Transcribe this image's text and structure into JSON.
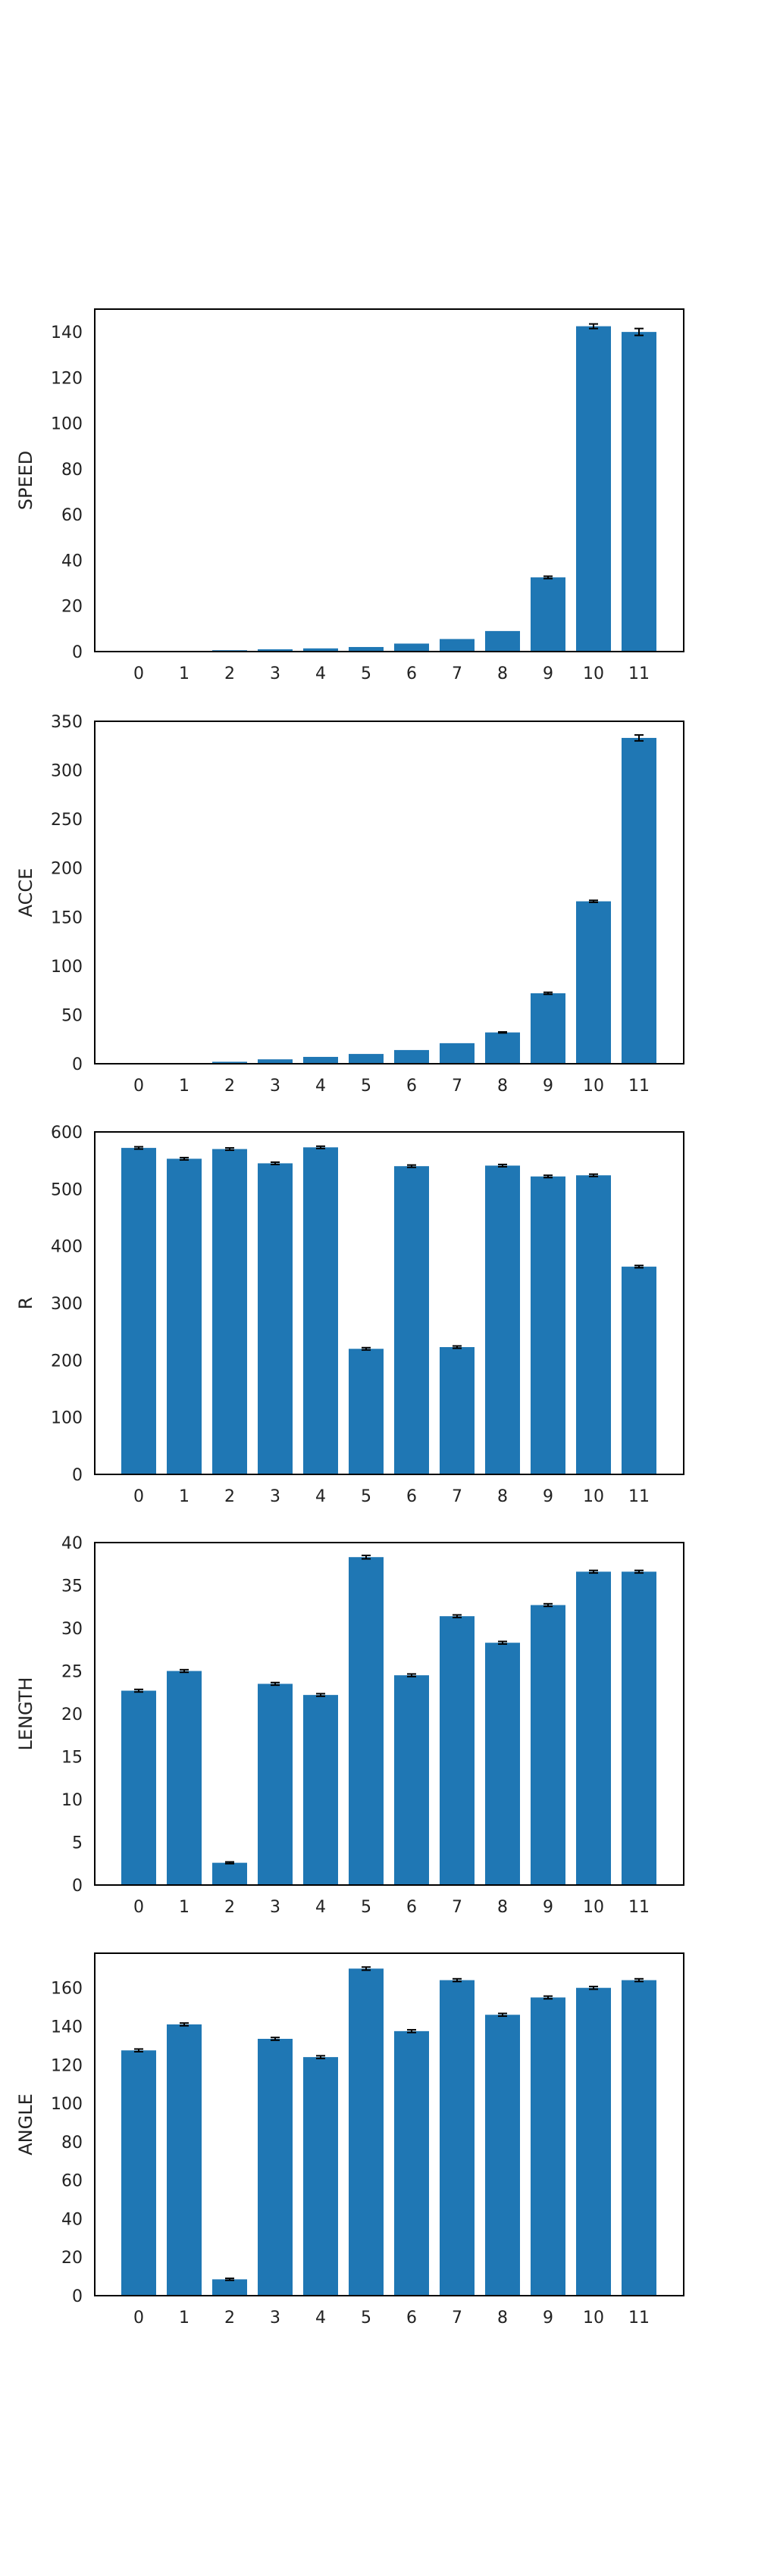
{
  "chart_data": [
    {
      "type": "bar",
      "ylabel": "SPEED",
      "categories": [
        "0",
        "1",
        "2",
        "3",
        "4",
        "5",
        "6",
        "7",
        "8",
        "9",
        "10",
        "11"
      ],
      "values": [
        0.2,
        0.3,
        0.6,
        1.0,
        1.4,
        2.0,
        3.5,
        5.5,
        9.0,
        32.5,
        142.5,
        140.0
      ],
      "errors": [
        0,
        0,
        0,
        0,
        0,
        0,
        0,
        0,
        0,
        0.5,
        1.0,
        1.5
      ],
      "ylim": [
        0,
        150
      ],
      "yticks": [
        0,
        20,
        40,
        60,
        80,
        100,
        120,
        140
      ]
    },
    {
      "type": "bar",
      "ylabel": "ACCE",
      "categories": [
        "0",
        "1",
        "2",
        "3",
        "4",
        "5",
        "6",
        "7",
        "8",
        "9",
        "10",
        "11"
      ],
      "values": [
        0.3,
        0.5,
        2.0,
        4.5,
        7.0,
        10.0,
        14.0,
        21.0,
        32.0,
        72.0,
        166.0,
        333.0
      ],
      "errors": [
        0,
        0,
        0,
        0,
        0,
        0,
        0,
        0,
        0.5,
        1.0,
        1.0,
        3.0
      ],
      "ylim": [
        0,
        350
      ],
      "yticks": [
        0,
        50,
        100,
        150,
        200,
        250,
        300,
        350
      ]
    },
    {
      "type": "bar",
      "ylabel": "R",
      "categories": [
        "0",
        "1",
        "2",
        "3",
        "4",
        "5",
        "6",
        "7",
        "8",
        "9",
        "10",
        "11"
      ],
      "values": [
        572,
        553,
        570,
        545,
        573,
        220,
        540,
        223,
        541,
        522,
        524,
        364
      ],
      "errors": [
        2,
        2,
        2,
        2,
        2,
        2,
        2,
        2,
        2,
        2,
        2,
        2
      ],
      "ylim": [
        0,
        600
      ],
      "yticks": [
        0,
        100,
        200,
        300,
        400,
        500,
        600
      ]
    },
    {
      "type": "bar",
      "ylabel": "LENGTH",
      "categories": [
        "0",
        "1",
        "2",
        "3",
        "4",
        "5",
        "6",
        "7",
        "8",
        "9",
        "10",
        "11"
      ],
      "values": [
        22.7,
        25.0,
        2.6,
        23.5,
        22.2,
        38.3,
        24.5,
        31.4,
        28.3,
        32.7,
        36.6,
        36.6
      ],
      "errors": [
        0.15,
        0.15,
        0.1,
        0.15,
        0.15,
        0.2,
        0.15,
        0.15,
        0.15,
        0.15,
        0.15,
        0.15
      ],
      "ylim": [
        0,
        40
      ],
      "yticks": [
        0,
        5,
        10,
        15,
        20,
        25,
        30,
        35,
        40
      ]
    },
    {
      "type": "bar",
      "ylabel": "ANGLE",
      "categories": [
        "0",
        "1",
        "2",
        "3",
        "4",
        "5",
        "6",
        "7",
        "8",
        "9",
        "10",
        "11"
      ],
      "values": [
        127.5,
        141.0,
        8.5,
        133.5,
        124.0,
        170.0,
        137.5,
        164.0,
        146.0,
        155.0,
        160.0,
        164.0
      ],
      "errors": [
        0.7,
        0.7,
        0.5,
        0.7,
        0.7,
        0.8,
        0.7,
        0.7,
        0.7,
        0.7,
        0.7,
        0.7
      ],
      "ylim": [
        0,
        178
      ],
      "yticks": [
        0,
        20,
        40,
        60,
        80,
        100,
        120,
        140,
        160
      ]
    }
  ]
}
